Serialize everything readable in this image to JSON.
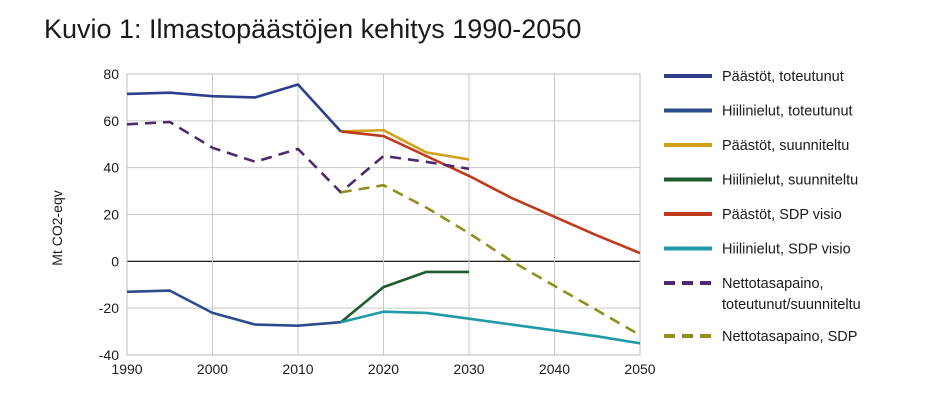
{
  "chart_data": {
    "type": "line",
    "title": "Kuvio 1: Ilmastopäästöjen kehitys 1990-2050",
    "xlabel": "",
    "ylabel": "Mt CO2-eqv",
    "xlim": [
      1990,
      2050
    ],
    "ylim": [
      -40,
      80
    ],
    "xticks": [
      "1990",
      "2000",
      "2010",
      "2020",
      "2030",
      "2040",
      "2050"
    ],
    "yticks": [
      "80",
      "60",
      "40",
      "20",
      "0",
      "-20",
      "-40"
    ],
    "grid": true,
    "legend_position": "right",
    "series": [
      {
        "name": "Päästöt, toteutunut",
        "color": "#2c3e8c",
        "dash": "solid",
        "x": [
          1990,
          1995,
          2000,
          2005,
          2010,
          2015
        ],
        "y": [
          71.5,
          72,
          70.5,
          70,
          75.5,
          55.5
        ]
      },
      {
        "name": "Hiilinielut, toteutunut",
        "color": "#2b4d8e",
        "dash": "solid",
        "x": [
          1990,
          1995,
          2000,
          2005,
          2010,
          2015
        ],
        "y": [
          -13,
          -12.5,
          -22,
          -27,
          -27.5,
          -26
        ]
      },
      {
        "name": "Päästöt, suunniteltu",
        "color": "#d4a017",
        "dash": "solid",
        "x": [
          2015,
          2020,
          2025,
          2030
        ],
        "y": [
          55.5,
          56,
          46.5,
          43.5
        ]
      },
      {
        "name": "Hiilinielut, suunniteltu",
        "color": "#1e5b2f",
        "dash": "solid",
        "x": [
          2015,
          2020,
          2025,
          2030
        ],
        "y": [
          -26,
          -11,
          -4.5,
          -4.5
        ]
      },
      {
        "name": "Päästöt, SDP visio",
        "color": "#c0391b",
        "dash": "solid",
        "x": [
          2015,
          2020,
          2025,
          2030,
          2035,
          2040,
          2045,
          2050
        ],
        "y": [
          55.5,
          53.5,
          45,
          36.5,
          27,
          19,
          11,
          3.5
        ]
      },
      {
        "name": "Hiilinielut, SDP visio",
        "color": "#1f9aa6",
        "dash": "solid",
        "x": [
          2015,
          2020,
          2025,
          2030,
          2035,
          2040,
          2045,
          2050
        ],
        "y": [
          -26,
          -21.5,
          -22,
          -24.5,
          -27,
          -29.5,
          -32,
          -35
        ]
      },
      {
        "name": "Nettotasapaino, toteutunut/suunniteltu",
        "legend_lines": [
          "Nettotasapaino,",
          "toteutunut/suunniteltu"
        ],
        "color": "#4b2a6e",
        "dash": "dashed",
        "x": [
          1990,
          1995,
          2000,
          2005,
          2010,
          2015,
          2020,
          2025,
          2030
        ],
        "y": [
          58.5,
          59.5,
          48.5,
          42.5,
          48,
          29.5,
          45,
          42.5,
          39.5
        ]
      },
      {
        "name": "Nettotasapaino, SDP",
        "color": "#8f8f1e",
        "dash": "dashed",
        "x": [
          2015,
          2020,
          2025,
          2030,
          2035,
          2040,
          2045,
          2050
        ],
        "y": [
          29.5,
          32.5,
          23,
          12,
          0,
          -10.5,
          -21,
          -31.5
        ]
      }
    ]
  }
}
